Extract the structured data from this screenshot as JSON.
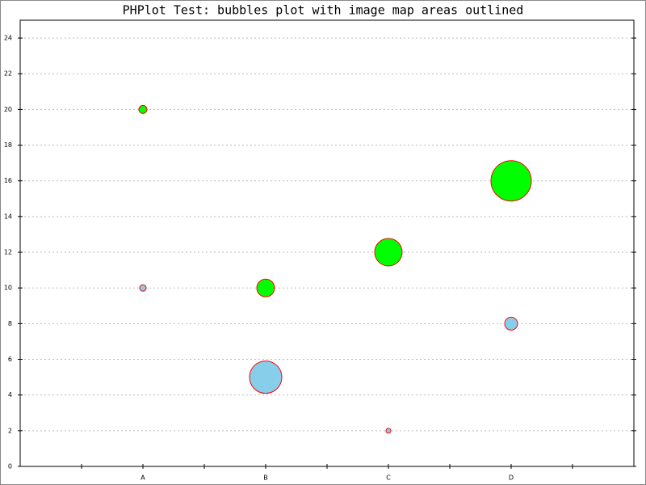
{
  "chart_data": {
    "type": "bubble",
    "title": "PHPlot Test: bubbles plot with image map areas outlined",
    "categories": [
      "A",
      "B",
      "C",
      "D"
    ],
    "series": [
      {
        "color": "#87ceeb",
        "values": [
          10,
          5,
          2,
          8
        ],
        "sizes": [
          4,
          20,
          3,
          8
        ]
      },
      {
        "color": "#00ff00",
        "values": [
          20,
          10,
          12,
          16
        ],
        "sizes": [
          5,
          11,
          17,
          25
        ]
      }
    ],
    "outline_color": "#ff0000",
    "ylim": [
      0,
      25
    ],
    "yticks": [
      0,
      2,
      4,
      6,
      8,
      10,
      12,
      14,
      16,
      18,
      20,
      22,
      24
    ],
    "grid": true
  }
}
